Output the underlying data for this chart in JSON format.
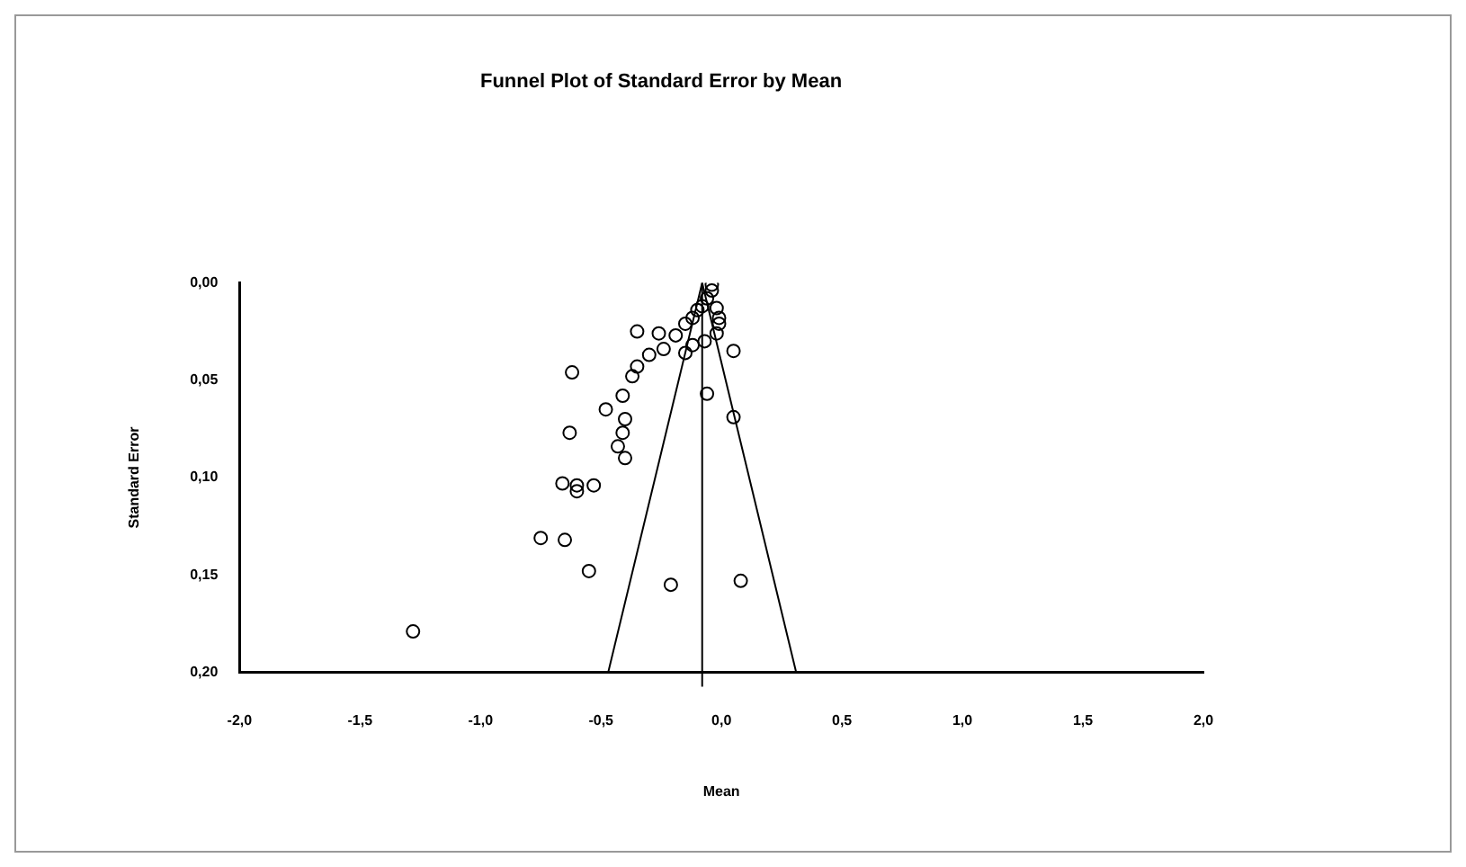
{
  "chart_data": {
    "type": "scatter",
    "title": "Funnel Plot of Standard Error by Mean",
    "xlabel": "Mean",
    "ylabel": "Standard Error",
    "xlim": [
      -2.0,
      2.0
    ],
    "xticks": [
      {
        "value": -2.0,
        "label": "-2,0"
      },
      {
        "value": -1.5,
        "label": "-1,5"
      },
      {
        "value": -1.0,
        "label": "-1,0"
      },
      {
        "value": -0.5,
        "label": "-0,5"
      },
      {
        "value": 0.0,
        "label": "0,0"
      },
      {
        "value": 0.5,
        "label": "0,5"
      },
      {
        "value": 1.0,
        "label": "1,0"
      },
      {
        "value": 1.5,
        "label": "1,5"
      },
      {
        "value": 2.0,
        "label": "2,0"
      }
    ],
    "ylim": [
      0.2,
      0.0
    ],
    "yticks": [
      {
        "value": 0.0,
        "label": "0,00"
      },
      {
        "value": 0.05,
        "label": "0,05"
      },
      {
        "value": 0.1,
        "label": "0,10"
      },
      {
        "value": 0.15,
        "label": "0,15"
      },
      {
        "value": 0.2,
        "label": "0,20"
      }
    ],
    "grid": false,
    "legend": false,
    "marker": "circle",
    "series": [
      {
        "color": "#000000",
        "x": [
          -0.35,
          -0.26,
          -0.19,
          -0.15,
          -0.12,
          -0.1,
          -0.08,
          -0.06,
          -0.04,
          -0.04,
          -0.02,
          -0.01,
          -0.01,
          -0.02,
          -0.07,
          -0.12,
          0.05,
          -0.24,
          -0.3,
          -0.35,
          -0.37,
          -0.15,
          -0.62,
          -0.41,
          -0.48,
          -0.4,
          -0.63,
          -0.41,
          -0.43,
          -0.4,
          -0.66,
          -0.6,
          -0.6,
          -0.53,
          -0.75,
          -0.65,
          -0.55,
          -0.21,
          0.08,
          -1.28,
          -0.06,
          0.05
        ],
        "values": [
          0.025,
          0.026,
          0.027,
          0.021,
          0.018,
          0.014,
          0.012,
          0.008,
          0.004,
          0.001,
          0.013,
          0.018,
          0.021,
          0.026,
          0.03,
          0.032,
          0.035,
          0.034,
          0.037,
          0.043,
          0.048,
          0.036,
          0.046,
          0.058,
          0.065,
          0.07,
          0.077,
          0.077,
          0.084,
          0.09,
          0.103,
          0.104,
          0.107,
          0.104,
          0.131,
          0.132,
          0.148,
          0.155,
          0.153,
          0.179,
          0.057,
          0.069
        ]
      },
      {
        "type": "line",
        "color": "#000000",
        "marker": "none",
        "x": [
          -0.47,
          -0.08,
          0.31
        ],
        "values": [
          0.2,
          0.0,
          0.2
        ]
      }
    ],
    "ref_lines": [
      {
        "axis": "x",
        "value": -0.08,
        "color": "#000000"
      }
    ]
  }
}
